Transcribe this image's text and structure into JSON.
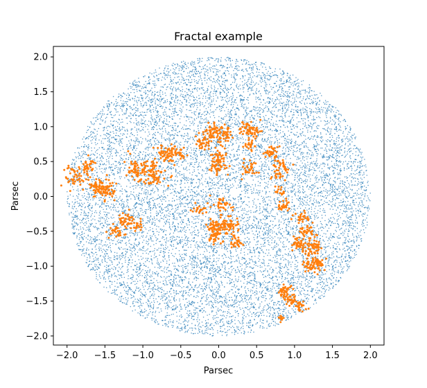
{
  "chart_data": {
    "type": "scatter",
    "title": "Fractal example",
    "xlabel": "Parsec",
    "ylabel": "Parsec",
    "xlim": [
      -2.18,
      2.18
    ],
    "ylim": [
      -2.13,
      2.15
    ],
    "xticks": [
      -2.0,
      -1.5,
      -1.0,
      -0.5,
      0.0,
      0.5,
      1.0,
      1.5,
      2.0
    ],
    "xtick_labels": [
      "−2.0",
      "−1.5",
      "−1.0",
      "−0.5",
      "0.0",
      "0.5",
      "1.0",
      "1.5",
      "2.0"
    ],
    "yticks": [
      -2.0,
      -1.5,
      -1.0,
      -0.5,
      0.0,
      0.5,
      1.0,
      1.5,
      2.0
    ],
    "ytick_labels": [
      "−2.0",
      "−1.5",
      "−1.0",
      "−0.5",
      "0.0",
      "0.5",
      "1.0",
      "1.5",
      "2.0"
    ],
    "grid": false,
    "legend": "none",
    "series": [
      {
        "color": "#1f77b4",
        "marker": "dot",
        "distribution": "uniform-disk",
        "count": 12000,
        "radius": 2.0,
        "center": [
          0.0,
          0.0
        ]
      },
      {
        "color": "#ff7f0e",
        "marker": "dot",
        "distribution": "clusters",
        "clusters": [
          {
            "x": -1.9,
            "y": 0.3,
            "spread": 0.08,
            "n": 45
          },
          {
            "x": -1.72,
            "y": 0.42,
            "spread": 0.06,
            "n": 35
          },
          {
            "x": -1.58,
            "y": 0.12,
            "spread": 0.07,
            "n": 60
          },
          {
            "x": -1.45,
            "y": 0.08,
            "spread": 0.06,
            "n": 40
          },
          {
            "x": -1.22,
            "y": -0.35,
            "spread": 0.06,
            "n": 45
          },
          {
            "x": -1.35,
            "y": -0.5,
            "spread": 0.05,
            "n": 30
          },
          {
            "x": -1.05,
            "y": -0.45,
            "spread": 0.04,
            "n": 15
          },
          {
            "x": -1.1,
            "y": 0.38,
            "spread": 0.08,
            "n": 55
          },
          {
            "x": -0.85,
            "y": 0.3,
            "spread": 0.07,
            "n": 55
          },
          {
            "x": -0.9,
            "y": 0.45,
            "spread": 0.05,
            "n": 25
          },
          {
            "x": -0.7,
            "y": 0.62,
            "spread": 0.07,
            "n": 50
          },
          {
            "x": -0.52,
            "y": 0.62,
            "spread": 0.05,
            "n": 30
          },
          {
            "x": -0.12,
            "y": 0.92,
            "spread": 0.05,
            "n": 40
          },
          {
            "x": -0.2,
            "y": 0.75,
            "spread": 0.05,
            "n": 35
          },
          {
            "x": 0.05,
            "y": 0.88,
            "spread": 0.07,
            "n": 60
          },
          {
            "x": 0.0,
            "y": 0.55,
            "spread": 0.05,
            "n": 40
          },
          {
            "x": 0.0,
            "y": 0.42,
            "spread": 0.06,
            "n": 35
          },
          {
            "x": 0.38,
            "y": 0.98,
            "spread": 0.06,
            "n": 45
          },
          {
            "x": 0.47,
            "y": 0.9,
            "spread": 0.04,
            "n": 20
          },
          {
            "x": 0.4,
            "y": 0.72,
            "spread": 0.04,
            "n": 20
          },
          {
            "x": 0.42,
            "y": 0.4,
            "spread": 0.06,
            "n": 30
          },
          {
            "x": 0.7,
            "y": 0.62,
            "spread": 0.05,
            "n": 35
          },
          {
            "x": 0.82,
            "y": 0.45,
            "spread": 0.05,
            "n": 30
          },
          {
            "x": 0.78,
            "y": 0.3,
            "spread": 0.04,
            "n": 20
          },
          {
            "x": 0.82,
            "y": 0.1,
            "spread": 0.04,
            "n": 15
          },
          {
            "x": 0.86,
            "y": -0.12,
            "spread": 0.04,
            "n": 25
          },
          {
            "x": -0.25,
            "y": -0.18,
            "spread": 0.05,
            "n": 25
          },
          {
            "x": 0.05,
            "y": -0.1,
            "spread": 0.06,
            "n": 30
          },
          {
            "x": 0.12,
            "y": -0.42,
            "spread": 0.07,
            "n": 70
          },
          {
            "x": -0.05,
            "y": -0.42,
            "spread": 0.05,
            "n": 40
          },
          {
            "x": -0.05,
            "y": -0.58,
            "spread": 0.05,
            "n": 35
          },
          {
            "x": 0.22,
            "y": -0.65,
            "spread": 0.05,
            "n": 25
          },
          {
            "x": 1.1,
            "y": -0.3,
            "spread": 0.05,
            "n": 25
          },
          {
            "x": 1.18,
            "y": -0.5,
            "spread": 0.05,
            "n": 30
          },
          {
            "x": 1.05,
            "y": -0.68,
            "spread": 0.05,
            "n": 40
          },
          {
            "x": 1.25,
            "y": -0.72,
            "spread": 0.06,
            "n": 60
          },
          {
            "x": 1.3,
            "y": -0.95,
            "spread": 0.06,
            "n": 45
          },
          {
            "x": 1.2,
            "y": -1.0,
            "spread": 0.05,
            "n": 30
          },
          {
            "x": 0.88,
            "y": -1.35,
            "spread": 0.05,
            "n": 40
          },
          {
            "x": 0.98,
            "y": -1.5,
            "spread": 0.05,
            "n": 30
          },
          {
            "x": 1.08,
            "y": -1.6,
            "spread": 0.04,
            "n": 20
          },
          {
            "x": 0.82,
            "y": -1.75,
            "spread": 0.03,
            "n": 10
          }
        ]
      }
    ]
  }
}
